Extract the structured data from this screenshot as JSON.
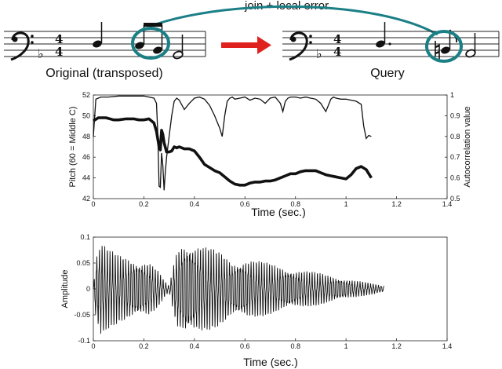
{
  "annotations": {
    "top_label": "join + local error",
    "original_label": "Original (transposed)",
    "query_label": "Query"
  },
  "colors": {
    "teal": "#1b7f86",
    "arrow_red": "#e0221f",
    "ink": "#111111"
  },
  "chart_data": [
    {
      "type": "line",
      "title": "",
      "xlabel": "Time (sec.)",
      "ylabel": "Pitch (60 = Middle C)",
      "ylabel_right": "Autocorrelation value",
      "xlim": [
        0,
        1.4
      ],
      "ylim": [
        42,
        52
      ],
      "ylim_right": [
        0.5,
        1.0
      ],
      "xticks": [
        "0",
        "0.2",
        "0.4",
        "0.6",
        "0.8",
        "1",
        "1.2",
        "1.4"
      ],
      "yticks": [
        "42",
        "44",
        "46",
        "48",
        "50",
        "52"
      ],
      "yticks_right": [
        "0.5",
        "0.6",
        "0.7",
        "0.8",
        "0.9",
        "1"
      ],
      "series": [
        {
          "axis": "left",
          "style": "thick",
          "x": [
            0.0,
            0.02,
            0.05,
            0.08,
            0.1,
            0.13,
            0.16,
            0.18,
            0.2,
            0.22,
            0.23,
            0.24,
            0.25,
            0.26,
            0.265,
            0.27,
            0.275,
            0.28,
            0.29,
            0.3,
            0.31,
            0.32,
            0.33,
            0.34,
            0.36,
            0.38,
            0.4,
            0.42,
            0.44,
            0.46,
            0.48,
            0.5,
            0.52,
            0.54,
            0.56,
            0.58,
            0.6,
            0.62,
            0.64,
            0.66,
            0.68,
            0.7,
            0.72,
            0.74,
            0.76,
            0.78,
            0.8,
            0.82,
            0.84,
            0.86,
            0.88,
            0.9,
            0.92,
            0.94,
            0.96,
            0.98,
            1.0,
            1.02,
            1.04,
            1.06,
            1.08,
            1.1
          ],
          "y": [
            49.5,
            49.8,
            49.8,
            49.6,
            49.6,
            49.7,
            49.7,
            49.6,
            49.6,
            49.7,
            49.5,
            49.3,
            48.5,
            47.0,
            46.7,
            48.6,
            48.2,
            47.4,
            46.5,
            46.5,
            46.6,
            47.0,
            46.9,
            47.0,
            46.8,
            46.8,
            46.6,
            46.0,
            45.3,
            45.0,
            44.7,
            44.5,
            44.1,
            43.7,
            43.4,
            43.3,
            43.3,
            43.5,
            43.6,
            43.6,
            43.7,
            43.7,
            43.8,
            44.0,
            44.2,
            44.4,
            44.4,
            44.6,
            44.7,
            44.7,
            44.7,
            44.5,
            44.3,
            44.2,
            44.1,
            44.0,
            43.9,
            44.3,
            44.9,
            45.1,
            44.8,
            44.0
          ]
        },
        {
          "axis": "right",
          "style": "thin",
          "x": [
            0.0,
            0.01,
            0.03,
            0.06,
            0.1,
            0.15,
            0.2,
            0.22,
            0.24,
            0.25,
            0.255,
            0.26,
            0.265,
            0.27,
            0.275,
            0.28,
            0.285,
            0.29,
            0.3,
            0.31,
            0.32,
            0.33,
            0.34,
            0.36,
            0.38,
            0.4,
            0.42,
            0.44,
            0.46,
            0.48,
            0.5,
            0.51,
            0.52,
            0.53,
            0.54,
            0.55,
            0.56,
            0.58,
            0.6,
            0.62,
            0.64,
            0.66,
            0.68,
            0.7,
            0.72,
            0.74,
            0.75,
            0.76,
            0.77,
            0.78,
            0.8,
            0.82,
            0.84,
            0.86,
            0.88,
            0.9,
            0.92,
            0.93,
            0.94,
            0.95,
            0.96,
            0.98,
            1.0,
            1.02,
            1.04,
            1.06,
            1.07,
            1.08,
            1.09,
            1.1
          ],
          "y": [
            0.8,
            0.98,
            0.99,
            0.99,
            0.995,
            0.995,
            0.995,
            0.99,
            0.985,
            0.96,
            0.82,
            0.56,
            0.555,
            0.72,
            0.66,
            0.54,
            0.63,
            0.7,
            0.8,
            0.9,
            0.97,
            0.985,
            0.975,
            0.93,
            0.96,
            0.985,
            0.99,
            0.98,
            0.95,
            0.9,
            0.84,
            0.8,
            0.9,
            0.97,
            0.985,
            0.99,
            0.98,
            0.985,
            0.99,
            0.975,
            0.985,
            0.98,
            0.96,
            0.985,
            0.99,
            0.96,
            0.92,
            0.97,
            0.985,
            0.99,
            0.99,
            0.985,
            0.99,
            0.985,
            0.98,
            0.96,
            0.92,
            0.95,
            0.98,
            0.99,
            0.985,
            0.98,
            0.98,
            0.975,
            0.97,
            0.955,
            0.85,
            0.79,
            0.805,
            0.8
          ]
        }
      ]
    },
    {
      "type": "line",
      "title": "",
      "xlabel": "Time (sec.)",
      "ylabel": "Amplitude",
      "xlim": [
        0,
        1.4
      ],
      "ylim": [
        -0.1,
        0.1
      ],
      "xticks": [
        "0",
        "0.2",
        "0.4",
        "0.6",
        "0.8",
        "1",
        "1.2",
        "1.4"
      ],
      "yticks": [
        "-0.1",
        "-0.05",
        "0",
        "0.05",
        "0.1"
      ],
      "series": [
        {
          "style": "waveform",
          "envelope_t": [
            0.0,
            0.01,
            0.03,
            0.06,
            0.1,
            0.16,
            0.22,
            0.26,
            0.28,
            0.3,
            0.33,
            0.36,
            0.42,
            0.5,
            0.55,
            0.6,
            0.7,
            0.8,
            0.9,
            1.0,
            1.1,
            1.15
          ],
          "envelope_amp": [
            0.0,
            0.06,
            0.085,
            0.07,
            0.06,
            0.055,
            0.05,
            0.03,
            0.015,
            0.005,
            0.07,
            0.09,
            0.08,
            0.065,
            0.05,
            0.055,
            0.045,
            0.035,
            0.028,
            0.018,
            0.01,
            0.005
          ]
        }
      ]
    }
  ]
}
